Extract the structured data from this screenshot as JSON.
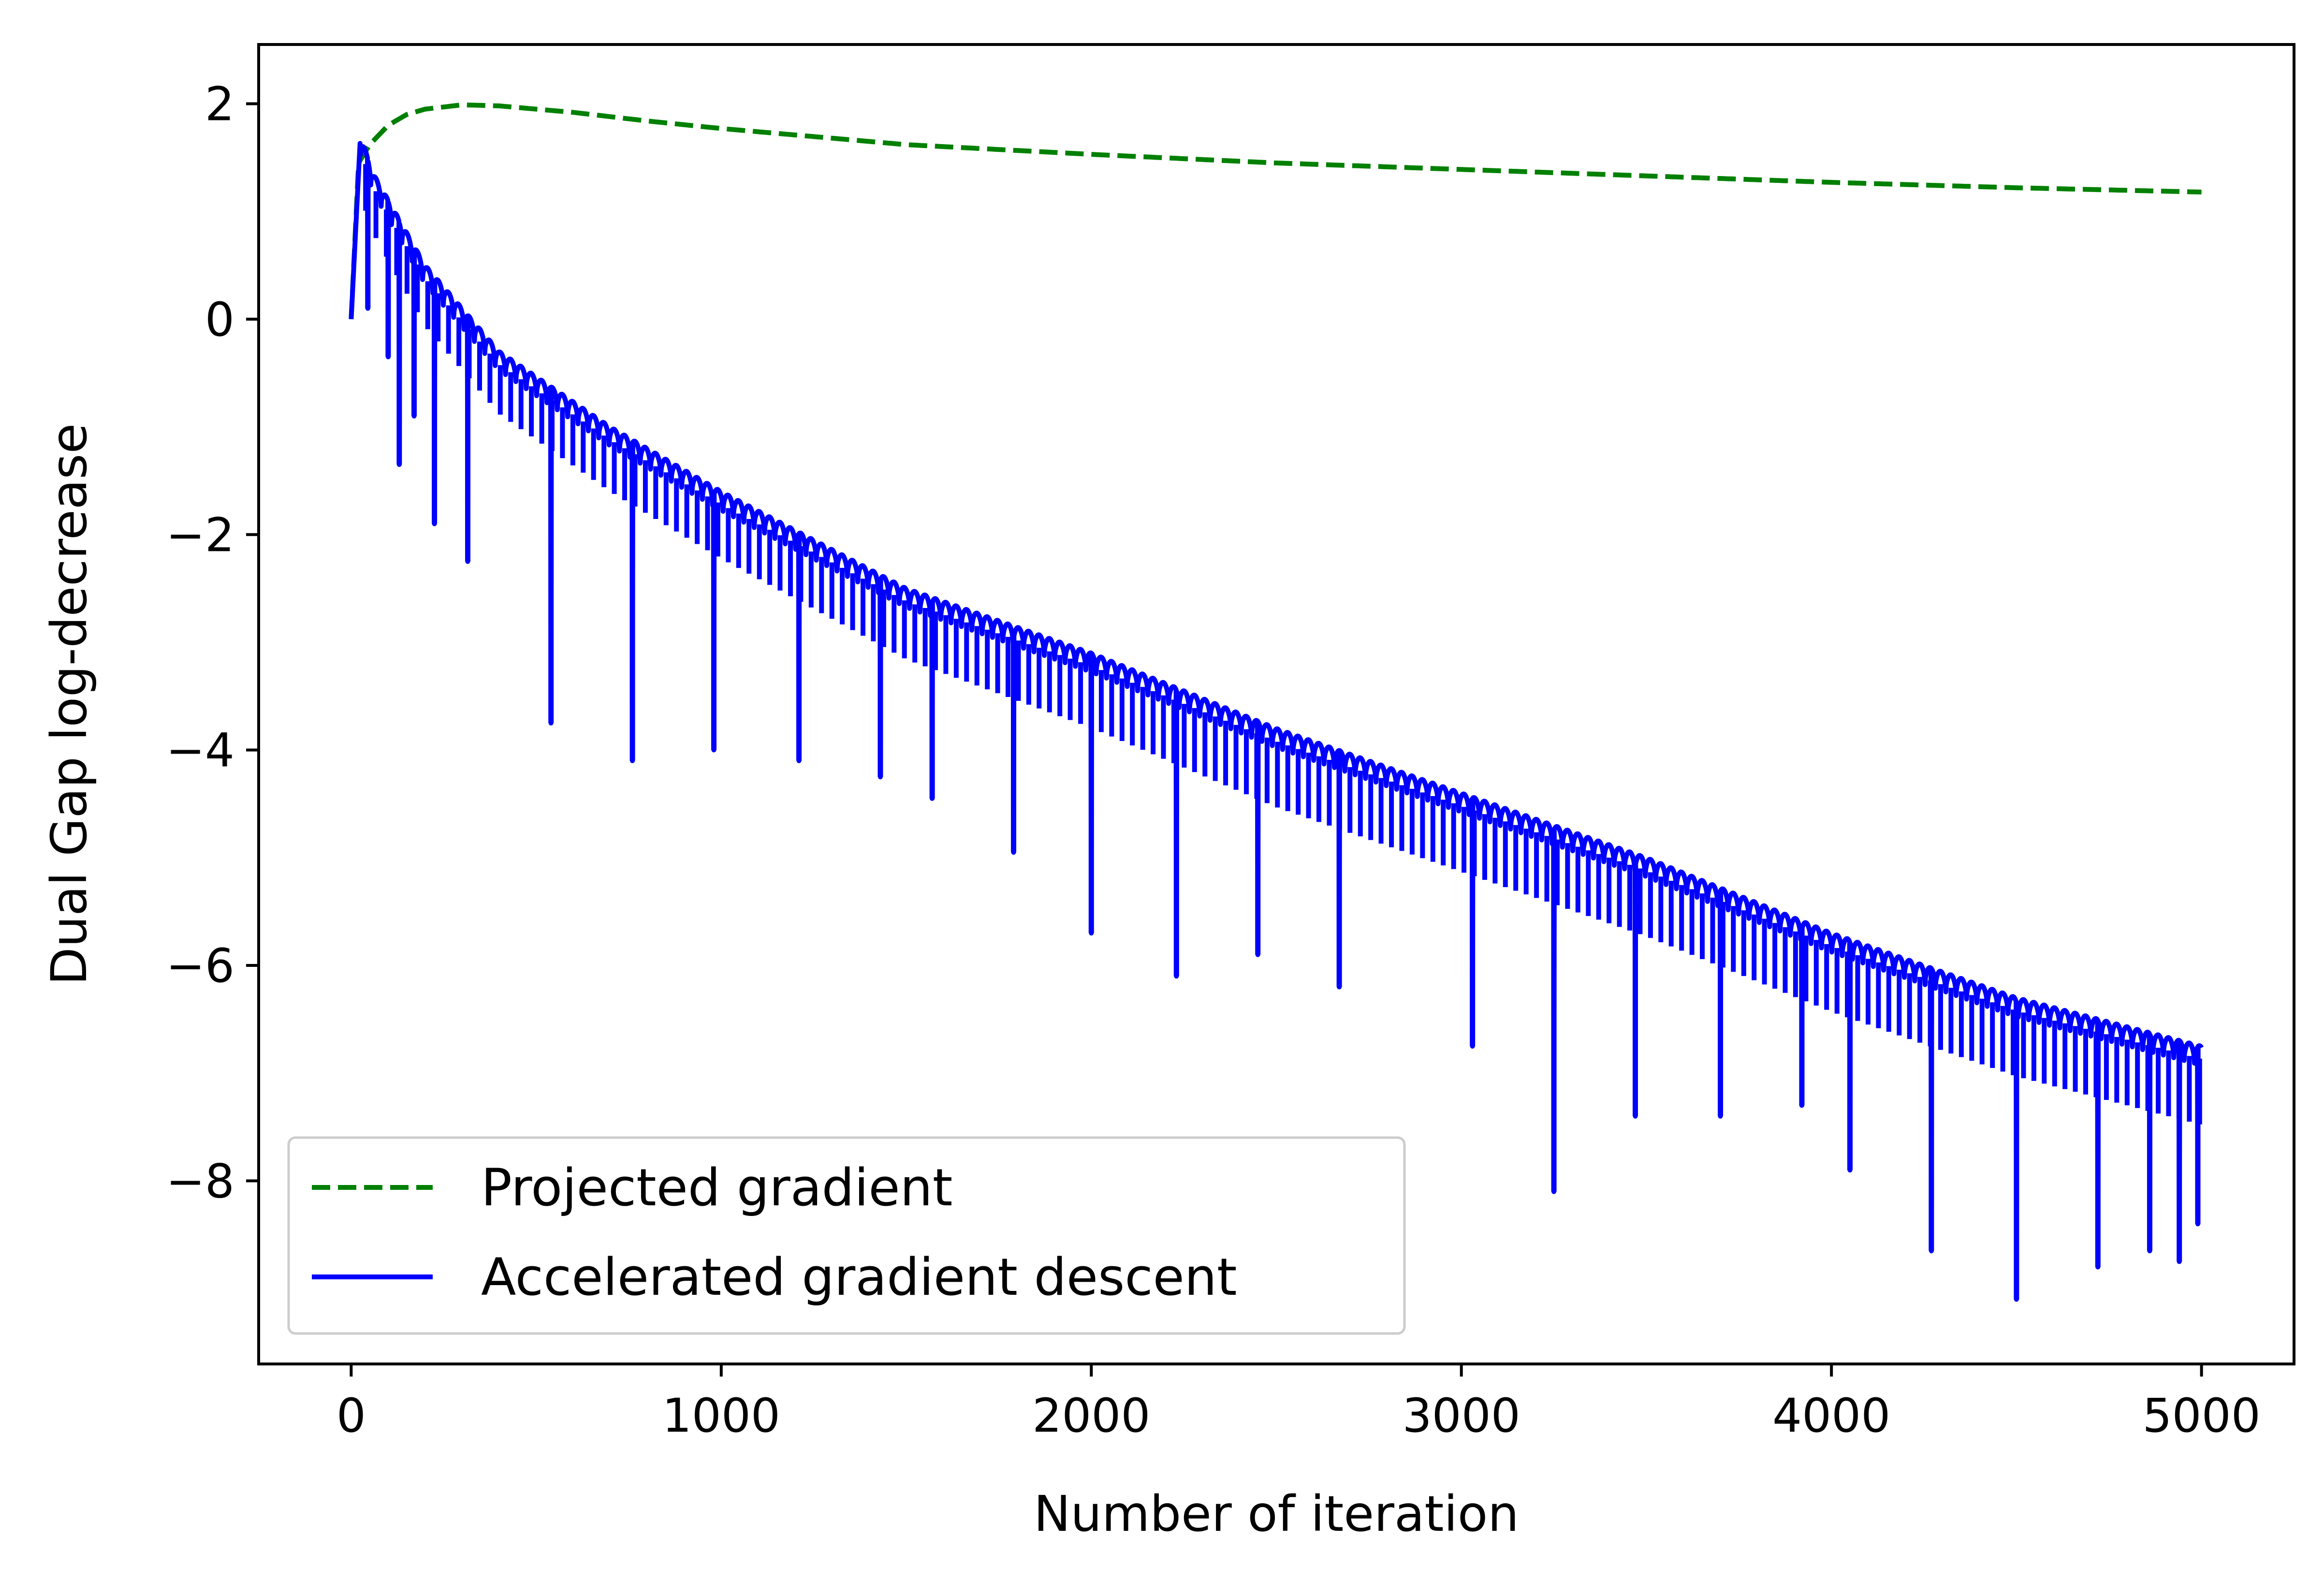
{
  "chart_data": {
    "type": "line",
    "title": "",
    "xlabel": "Number of iteration",
    "ylabel": "Dual Gap log-decrease",
    "xlim": [
      -250,
      5250
    ],
    "ylim": [
      -9.7,
      2.55
    ],
    "xticks": [
      0,
      1000,
      2000,
      3000,
      4000,
      5000
    ],
    "xtick_labels": [
      "0",
      "1000",
      "2000",
      "3000",
      "4000",
      "5000"
    ],
    "yticks": [
      2,
      0,
      -2,
      -4,
      -6,
      -8
    ],
    "ytick_labels": [
      "2",
      "0",
      "−2",
      "−4",
      "−6",
      "−8"
    ],
    "grid": false,
    "legend_position": "lower-left",
    "series": [
      {
        "name": "Projected gradient",
        "color": "#008000",
        "style": "dashed",
        "x": [
          0,
          20,
          50,
          100,
          150,
          200,
          300,
          400,
          600,
          800,
          1000,
          1500,
          2000,
          2500,
          3000,
          3500,
          4000,
          4500,
          5000
        ],
        "y": [
          0.0,
          1.45,
          1.62,
          1.8,
          1.9,
          1.95,
          1.99,
          1.98,
          1.92,
          1.84,
          1.77,
          1.62,
          1.53,
          1.45,
          1.39,
          1.33,
          1.27,
          1.22,
          1.18
        ]
      },
      {
        "name": "Accelerated gradient descent",
        "color": "#0000ff",
        "style": "solid",
        "period": 28,
        "envelope_x": [
          0,
          25,
          60,
          200,
          400,
          700,
          1000,
          1500,
          2000,
          2500,
          3000,
          3500,
          4000,
          4500,
          5000
        ],
        "envelope_y": [
          0.0,
          1.7,
          1.35,
          0.5,
          -0.3,
          -1.0,
          -1.6,
          -2.5,
          -3.1,
          -3.8,
          -4.4,
          -5.0,
          -5.7,
          -6.3,
          -6.75
        ],
        "troughs_x": [
          45,
          100,
          130,
          170,
          225,
          315,
          540,
          760,
          980,
          1210,
          1430,
          1570,
          1790,
          2000,
          2230,
          2450,
          2670,
          3030,
          3250,
          3470,
          3700,
          3920,
          4050,
          4270,
          4500,
          4720,
          4860,
          4940,
          4990
        ],
        "troughs_y": [
          0.1,
          -0.35,
          -1.35,
          -0.9,
          -1.9,
          -2.25,
          -3.75,
          -4.1,
          -4.0,
          -4.1,
          -4.25,
          -4.45,
          -4.95,
          -5.7,
          -6.1,
          -5.9,
          -6.2,
          -6.75,
          -8.1,
          -7.4,
          -7.4,
          -7.3,
          -7.9,
          -8.65,
          -9.1,
          -8.8,
          -8.65,
          -8.75,
          -8.4
        ]
      }
    ]
  }
}
